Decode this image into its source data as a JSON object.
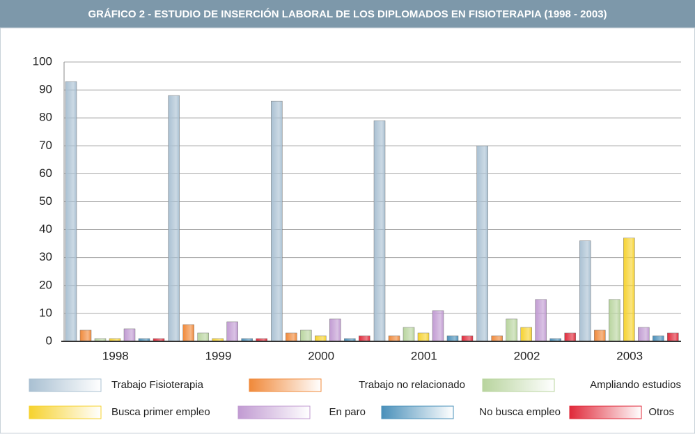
{
  "chart_data": {
    "type": "bar",
    "title": "GRÁFICO 2 - ESTUDIO DE INSERCIÓN LABORAL DE LOS DIPLOMADOS EN FISIOTERAPIA (1998 - 2003)",
    "categories": [
      "1998",
      "1999",
      "2000",
      "2001",
      "2002",
      "2003"
    ],
    "series": [
      {
        "name": "Trabajo Fisioterapia",
        "color": "#a9c0d2",
        "values": [
          93,
          88,
          86,
          79,
          70,
          36
        ]
      },
      {
        "name": "Trabajo no relacionado",
        "color": "#f0893a",
        "values": [
          4,
          6,
          3,
          2,
          2,
          4
        ]
      },
      {
        "name": "Ampliando estudios",
        "color": "#b8d49e",
        "values": [
          1,
          3,
          4,
          5,
          8,
          15
        ]
      },
      {
        "name": "Busca primer empleo",
        "color": "#f6d22e",
        "values": [
          1,
          1,
          2,
          3,
          5,
          37
        ]
      },
      {
        "name": "En paro",
        "color": "#c19bd2",
        "values": [
          4.5,
          7,
          8,
          11,
          15,
          5
        ]
      },
      {
        "name": "No busca empleo",
        "color": "#4a90ba",
        "values": [
          1,
          1,
          1,
          2,
          1,
          2
        ]
      },
      {
        "name": "Otros",
        "color": "#e0293a",
        "values": [
          1,
          1,
          2,
          2,
          3,
          3
        ]
      }
    ],
    "ylim": [
      0,
      100
    ],
    "yticks": [
      0,
      10,
      20,
      30,
      40,
      50,
      60,
      70,
      80,
      90,
      100
    ],
    "grid": true
  }
}
